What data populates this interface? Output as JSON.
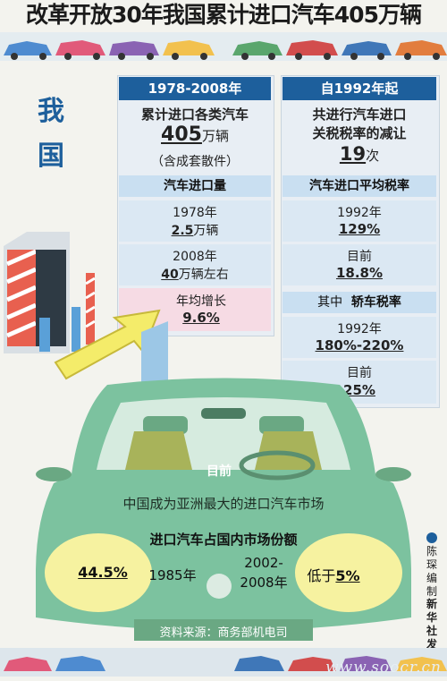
{
  "title": "改革开放30年我国累计进口汽车405万辆",
  "side_label": [
    "我",
    "国"
  ],
  "left_panel": {
    "header": "1978-2008年",
    "intro_line1": "累计进口各类汽车",
    "intro_number": "405",
    "intro_unit": "万辆",
    "intro_note": "（含成套散件）",
    "sub_header": "汽车进口量",
    "rows": [
      {
        "label": "1978年",
        "value": "2.5",
        "unit": "万辆"
      },
      {
        "label": "2008年",
        "value": "40",
        "unit": "万辆左右"
      }
    ],
    "growth_label": "年均增长",
    "growth_value": "9.6%"
  },
  "right_panel": {
    "header": "自1992年起",
    "intro_line1": "共进行汽车进口",
    "intro_line2": "关税税率的减让",
    "intro_number": "19",
    "intro_unit": "次",
    "sub_header": "汽车进口平均税率",
    "rows": [
      {
        "label": "1992年",
        "value": "129%"
      },
      {
        "label": "目前",
        "value": "18.8%"
      }
    ],
    "sub_header2_prefix": "其中",
    "sub_header2": "轿车税率",
    "rows2": [
      {
        "label": "1992年",
        "value": "180%-220%"
      },
      {
        "label": "目前",
        "value": "25%"
      }
    ]
  },
  "car": {
    "current_label": "目前",
    "market_line": "中国成为亚洲最大的进口汽车市场",
    "share_title": "进口汽车占国内市场份额",
    "left_value": "44.5%",
    "left_year": "1985年",
    "right_year1": "2002-",
    "right_year2": "2008年",
    "right_prefix": "低于",
    "right_value": "5%",
    "source": "资料来源：商务部机电司"
  },
  "credit": {
    "author_lines": [
      "陈",
      "琛",
      "编",
      "制"
    ],
    "agency_lines": [
      "新",
      "华",
      "社",
      "发"
    ]
  },
  "watermark": "www.soocr.cn",
  "colors": {
    "header_blue": "#1d5f9c",
    "car_green": "#73bf9a",
    "pink": "#f6dbe4",
    "arrow_yellow": "#f4ec6a"
  }
}
